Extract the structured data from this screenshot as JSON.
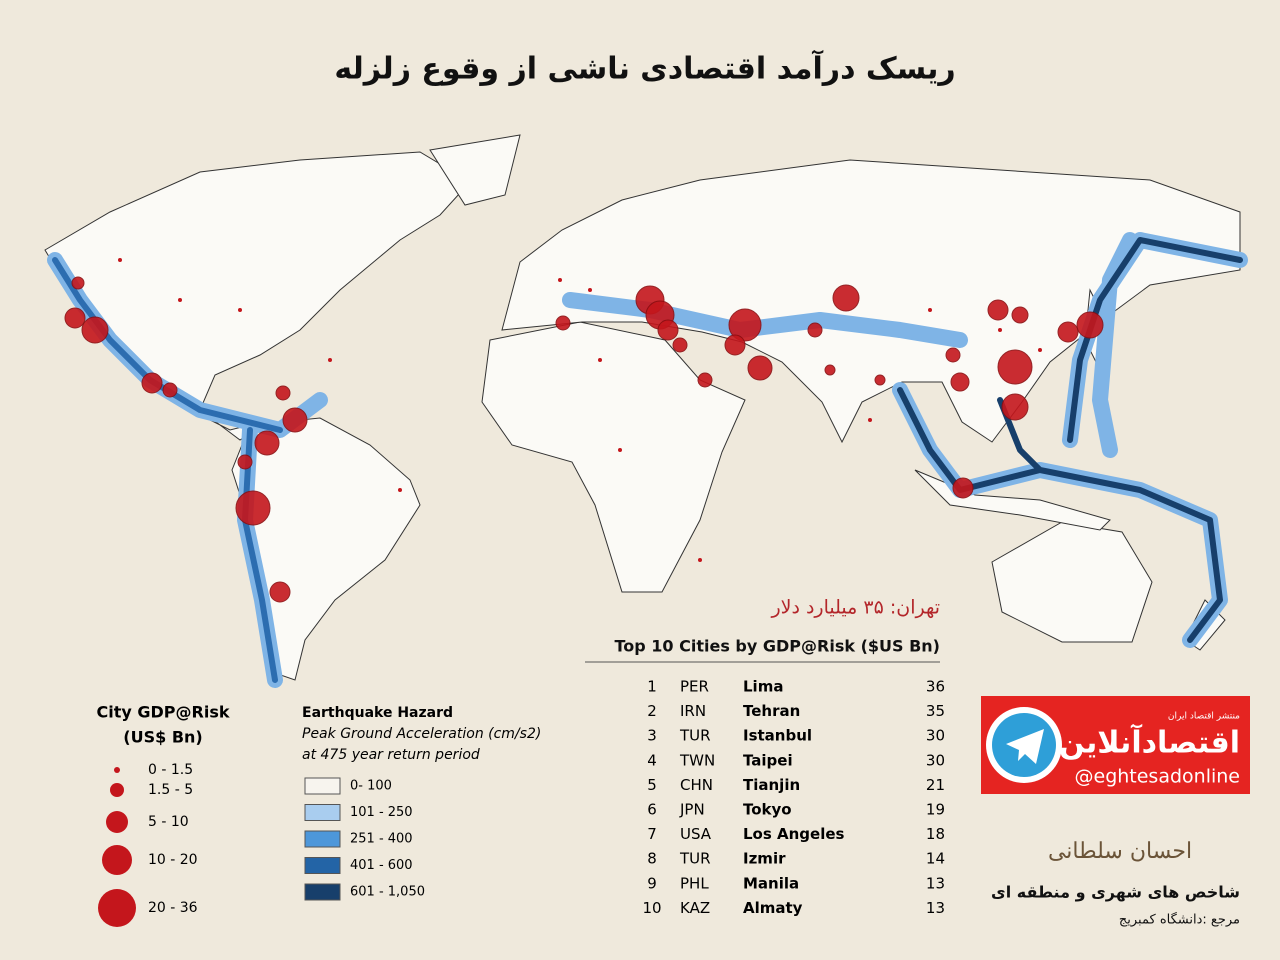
{
  "title": "ریسک درآمد اقتصادی ناشی از وقوع زلزله",
  "highlight": "تهران: ۳۵ میلیارد دلار",
  "table": {
    "title": "Top 10 Cities by GDP@Risk ($US Bn)",
    "rows": [
      [
        1,
        "PER",
        "Lima",
        36
      ],
      [
        2,
        "IRN",
        "Tehran",
        35
      ],
      [
        3,
        "TUR",
        "Istanbul",
        30
      ],
      [
        4,
        "TWN",
        "Taipei",
        30
      ],
      [
        5,
        "CHN",
        "Tianjin",
        21
      ],
      [
        6,
        "JPN",
        "Tokyo",
        19
      ],
      [
        7,
        "USA",
        "Los Angeles",
        18
      ],
      [
        8,
        "TUR",
        "Izmir",
        14
      ],
      [
        9,
        "PHL",
        "Manila",
        13
      ],
      [
        10,
        "KAZ",
        "Almaty",
        13
      ]
    ]
  },
  "legend_size": {
    "title": [
      "City GDP@Risk",
      "(US$ Bn)"
    ],
    "items": [
      "0 - 1.5",
      "1.5 - 5",
      "5 - 10",
      "10 - 20",
      "20 - 36"
    ]
  },
  "legend_hazard": {
    "title": "Earthquake Hazard",
    "subtitle": [
      "Peak Ground Acceleration (cm/s2)",
      "at 475 year return period"
    ],
    "items": [
      {
        "label": "0- 100",
        "color": "#f7f4ee"
      },
      {
        "label": "101 - 250",
        "color": "#a9cdef"
      },
      {
        "label": "251 - 400",
        "color": "#4d97da"
      },
      {
        "label": "401 - 600",
        "color": "#2364a6"
      },
      {
        "label": "601 - 1,050",
        "color": "#173f6b"
      }
    ]
  },
  "badge": {
    "tagline": "منتشر اقتصاد ایران",
    "brand": "اقتصادآنلاین",
    "handle": "@eghtesadonline"
  },
  "footer": {
    "logo": "احسان سلطانی",
    "line1": "شاخص های شهری و منطقه ای",
    "line2": "مرجع :دانشگاه کمبریج"
  }
}
